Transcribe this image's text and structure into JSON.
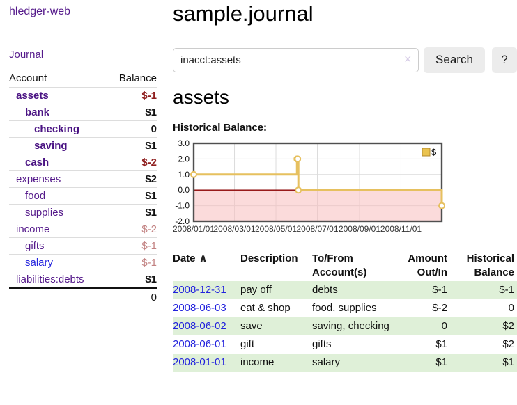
{
  "brand": "hledger-web",
  "header": {
    "title": "sample.journal"
  },
  "search": {
    "value": "inacct:assets",
    "clear_icon": "✕",
    "search_label": "Search",
    "help_label": "?"
  },
  "sidebar": {
    "journal_link": "Journal",
    "columns": {
      "account": "Account",
      "balance": "Balance"
    },
    "accounts": [
      {
        "label": "assets",
        "indent": 0,
        "balance": "$-1",
        "label_style": "bold-purple",
        "balance_style": "neg-bold"
      },
      {
        "label": "bank",
        "indent": 1,
        "balance": "$1",
        "label_style": "bold-purple",
        "balance_style": "pos-bold"
      },
      {
        "label": "checking",
        "indent": 2,
        "balance": "0",
        "label_style": "bold-purple",
        "balance_style": "pos-bold"
      },
      {
        "label": "saving",
        "indent": 2,
        "balance": "$1",
        "label_style": "bold-purple",
        "balance_style": "pos-bold"
      },
      {
        "label": "cash",
        "indent": 1,
        "balance": "$-2",
        "label_style": "bold-purple",
        "balance_style": "neg-bold"
      },
      {
        "label": "expenses",
        "indent": 0,
        "balance": "$2",
        "label_style": "purple",
        "balance_style": "pos-bold"
      },
      {
        "label": "food",
        "indent": 1,
        "balance": "$1",
        "label_style": "purple",
        "balance_style": "pos-bold"
      },
      {
        "label": "supplies",
        "indent": 1,
        "balance": "$1",
        "label_style": "purple",
        "balance_style": "pos-bold"
      },
      {
        "label": "income",
        "indent": 0,
        "balance": "$-2",
        "label_style": "purple",
        "balance_style": "neg-dim"
      },
      {
        "label": "gifts",
        "indent": 1,
        "balance": "$-1",
        "label_style": "purple",
        "balance_style": "neg-dim"
      },
      {
        "label": "salary",
        "indent": 1,
        "balance": "$-1",
        "label_style": "blue",
        "balance_style": "neg-dim"
      },
      {
        "label": "liabilities:debts",
        "indent": 0,
        "balance": "$1",
        "label_style": "purple",
        "balance_style": "pos-bold"
      }
    ],
    "total": "0"
  },
  "account_page": {
    "title": "assets",
    "chart_heading": "Historical Balance:"
  },
  "chart_data": {
    "type": "line",
    "step": true,
    "title": "Historical Balance",
    "series": [
      {
        "name": "$",
        "x_dates": [
          "2008-01-01",
          "2008-06-01",
          "2008-06-02",
          "2008-06-03",
          "2008-12-31"
        ],
        "x_days": [
          0,
          152,
          153,
          154,
          365
        ],
        "values": [
          1,
          2,
          2,
          0,
          -1
        ]
      }
    ],
    "x_range_days": [
      0,
      365
    ],
    "x_tick_days": [
      0,
      60,
      121,
      182,
      244,
      305
    ],
    "x_tick_labels": [
      "2008/01/01",
      "2008/03/01",
      "2008/05/01",
      "2008/07/01",
      "2008/09/01",
      "2008/11/01"
    ],
    "y_tick_values": [
      3,
      2,
      1,
      0,
      -1,
      -2
    ],
    "y_tick_labels": [
      "3.0",
      "2.0",
      "1.0",
      "0.0",
      "-1.0",
      "-2.0"
    ],
    "ylim": [
      -2,
      3
    ],
    "grid": true,
    "legend": {
      "label": "$",
      "position": "top-right"
    },
    "colors": {
      "line": "#e6c05f",
      "marker_fill": "#ffffff",
      "legend_fill": "#eac34f",
      "legend_border": "#b2882f",
      "negative_region": "rgba(248,190,190,0.55)",
      "zero_line": "#8b0000",
      "grid_line": "#dcdcdc",
      "plot_border": "#4f4f4f"
    }
  },
  "register": {
    "sort_arrow": "∧",
    "columns": [
      {
        "line1": "Date",
        "line2": "",
        "align": "left",
        "sorted": true
      },
      {
        "line1": "Description",
        "line2": "",
        "align": "left"
      },
      {
        "line1": "To/From",
        "line2": "Account(s)",
        "align": "left"
      },
      {
        "line1": "Amount",
        "line2": "Out/In",
        "align": "right"
      },
      {
        "line1": "Historical",
        "line2": "Balance",
        "align": "right"
      }
    ],
    "rows": [
      {
        "date": "2008-12-31",
        "description": "pay off",
        "accounts": "debts",
        "amount": "$-1",
        "amount_neg": true,
        "balance": "$-1",
        "balance_neg": true
      },
      {
        "date": "2008-06-03",
        "description": "eat & shop",
        "accounts": "food, supplies",
        "amount": "$-2",
        "amount_neg": true,
        "balance": "0",
        "balance_neg": false
      },
      {
        "date": "2008-06-02",
        "description": "save",
        "accounts": "saving, checking",
        "amount": "0",
        "amount_neg": false,
        "balance": "$2",
        "balance_neg": false
      },
      {
        "date": "2008-06-01",
        "description": "gift",
        "accounts": "gifts",
        "amount": "$1",
        "amount_neg": false,
        "balance": "$2",
        "balance_neg": false
      },
      {
        "date": "2008-01-01",
        "description": "income",
        "accounts": "salary",
        "amount": "$1",
        "amount_neg": false,
        "balance": "$1",
        "balance_neg": false
      }
    ]
  }
}
